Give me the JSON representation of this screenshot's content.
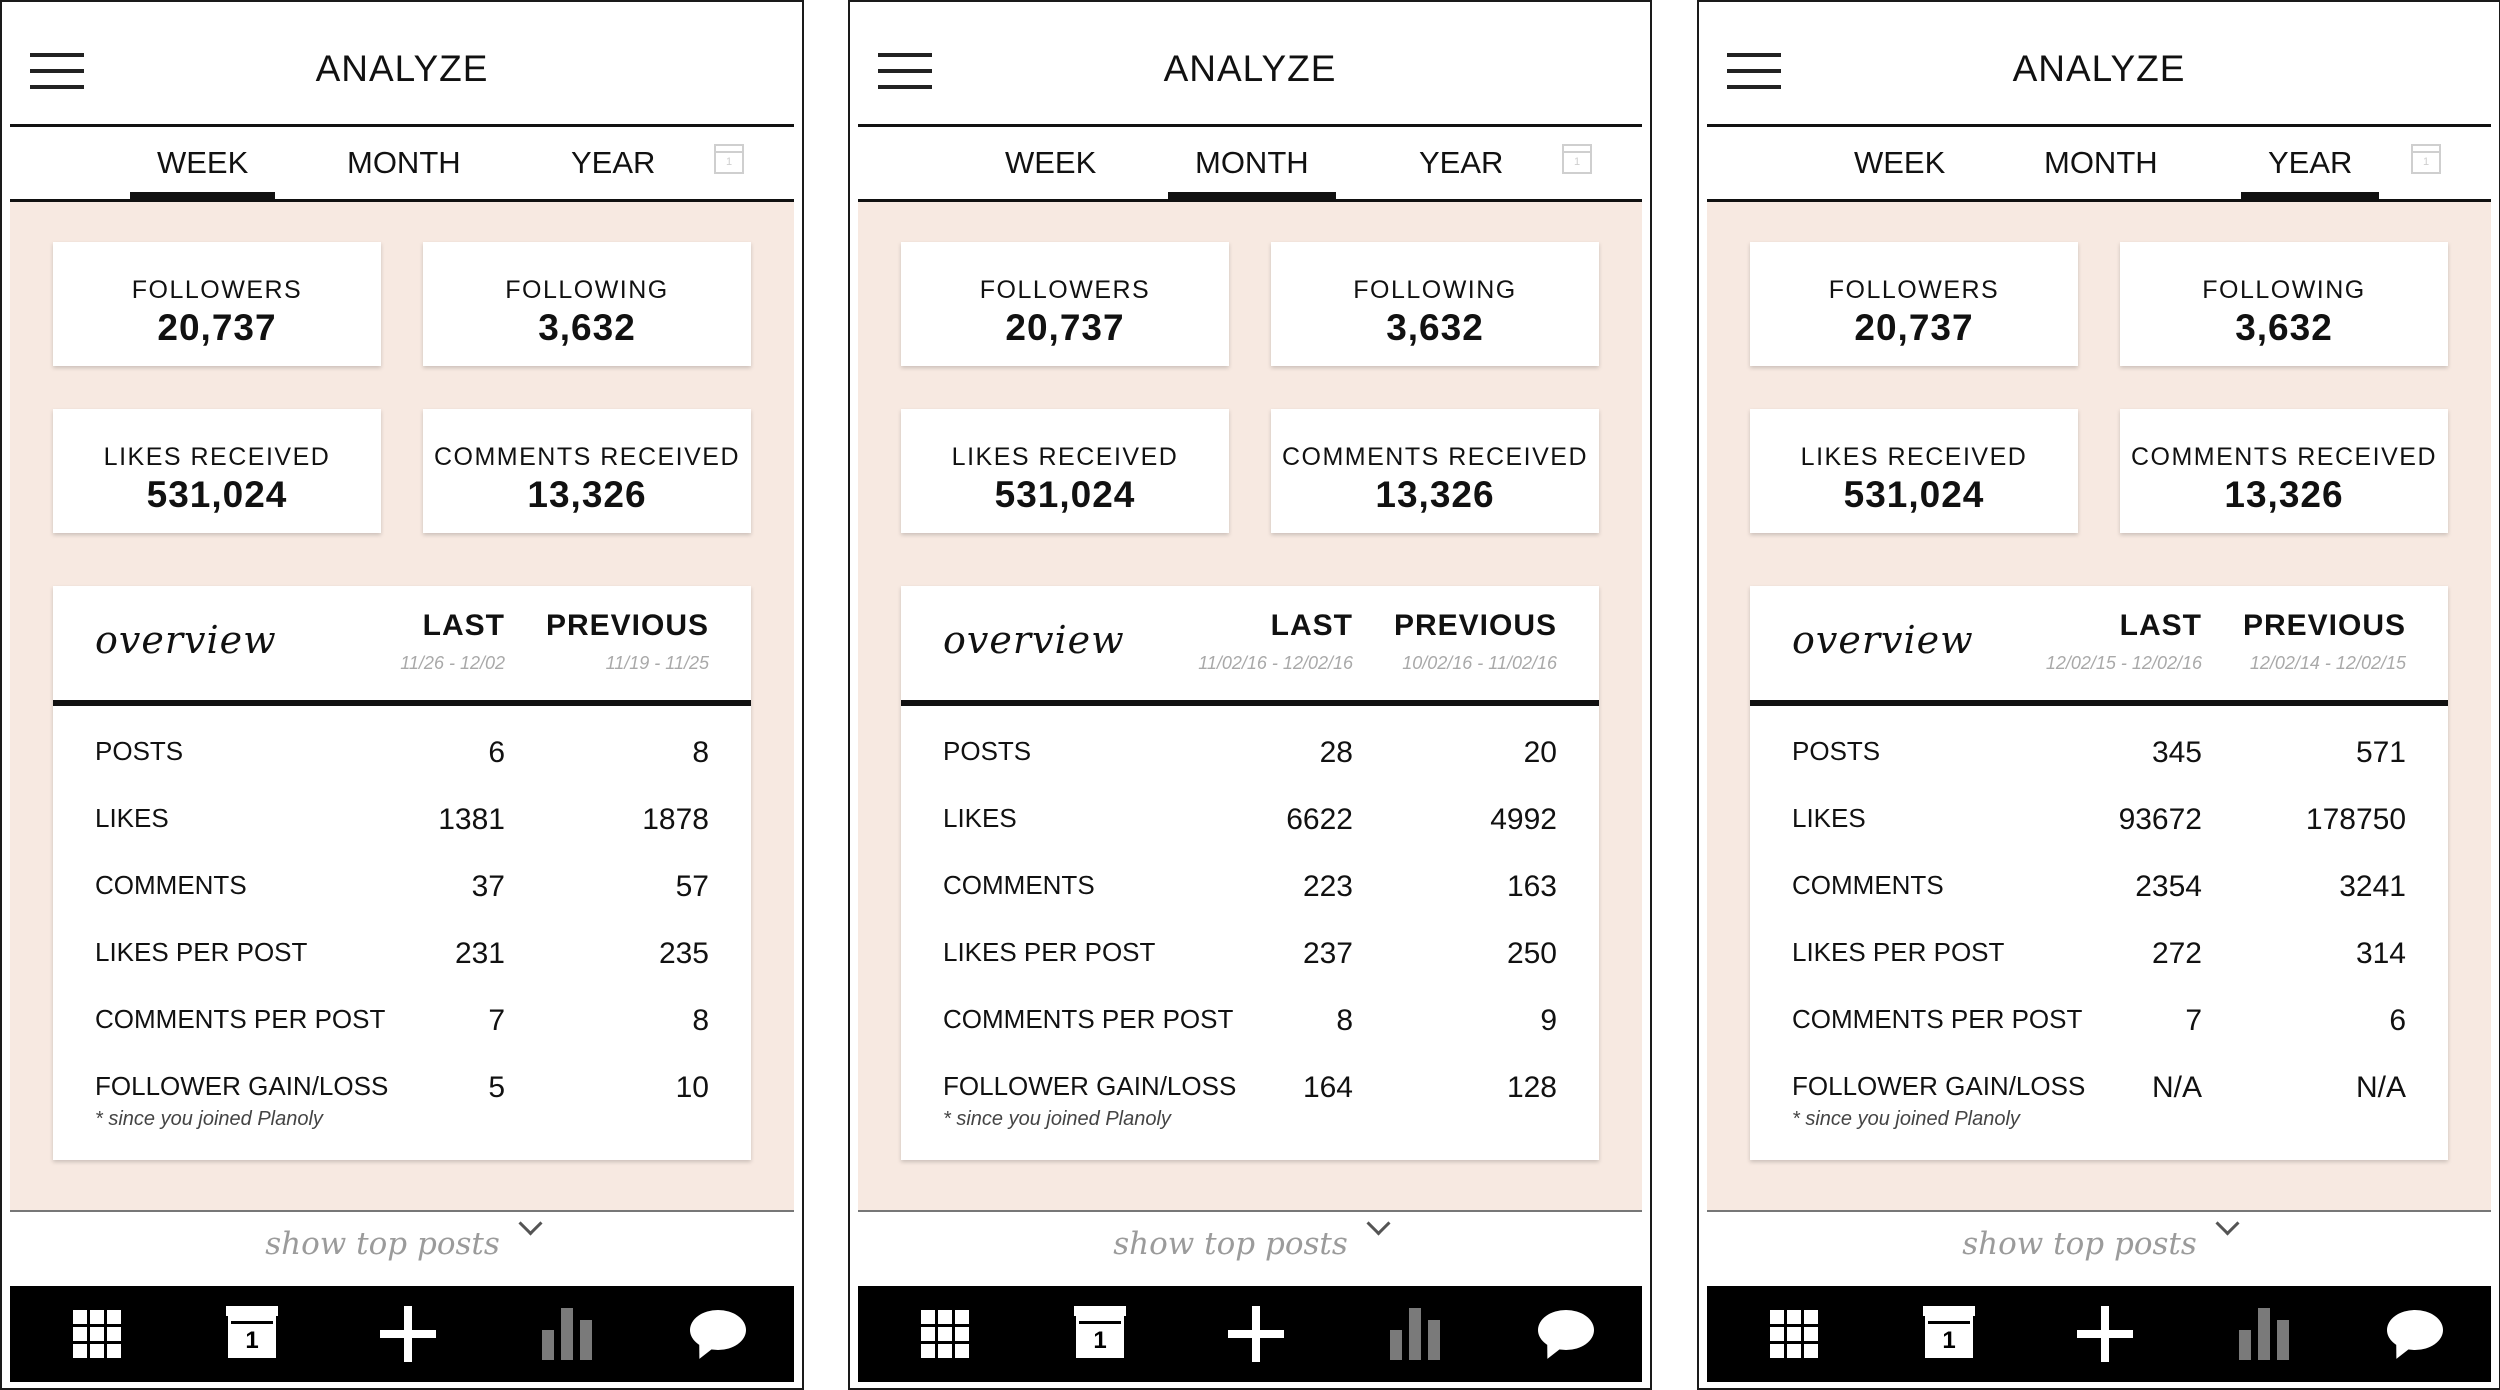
{
  "app": {
    "title": "ANALYZE",
    "tabs": [
      "WEEK",
      "MONTH",
      "YEAR"
    ],
    "stats": {
      "followers_label": "FOLLOWERS",
      "followers": "20,737",
      "following_label": "FOLLOWING",
      "following": "3,632",
      "likes_label": "LIKES RECEIVED",
      "likes": "531,024",
      "comments_label": "COMMENTS RECEIVED",
      "comments": "13,326"
    },
    "overview": {
      "title": "overview",
      "last_label": "LAST",
      "previous_label": "PREVIOUS"
    },
    "row_labels": [
      "POSTS",
      "LIKES",
      "COMMENTS",
      "LIKES PER POST",
      "COMMENTS PER POST",
      "FOLLOWER GAIN/LOSS"
    ],
    "note": "* since you joined Planoly",
    "show_top_posts": "show top posts",
    "calendar_day": "1",
    "colors": {
      "content_bg": "#f7e9e1",
      "nav_bg": "#000000",
      "inactive_text": "#9b9b9b"
    },
    "nav_icons": [
      "grid-icon",
      "calendar-icon",
      "plus-icon",
      "bar-chart-icon",
      "chat-bubble-icon"
    ]
  },
  "screens": [
    {
      "active_tab": "WEEK",
      "last_range": "11/26 - 12/02",
      "previous_range": "11/19 - 11/25",
      "rows": [
        {
          "last": "6",
          "previous": "8"
        },
        {
          "last": "1381",
          "previous": "1878"
        },
        {
          "last": "37",
          "previous": "57"
        },
        {
          "last": "231",
          "previous": "235"
        },
        {
          "last": "7",
          "previous": "8"
        },
        {
          "last": "5",
          "previous": "10"
        }
      ]
    },
    {
      "active_tab": "MONTH",
      "last_range": "11/02/16 - 12/02/16",
      "previous_range": "10/02/16 - 11/02/16",
      "rows": [
        {
          "last": "28",
          "previous": "20"
        },
        {
          "last": "6622",
          "previous": "4992"
        },
        {
          "last": "223",
          "previous": "163"
        },
        {
          "last": "237",
          "previous": "250"
        },
        {
          "last": "8",
          "previous": "9"
        },
        {
          "last": "164",
          "previous": "128"
        }
      ]
    },
    {
      "active_tab": "YEAR",
      "last_range": "12/02/15 - 12/02/16",
      "previous_range": "12/02/14 - 12/02/15",
      "rows": [
        {
          "last": "345",
          "previous": "571"
        },
        {
          "last": "93672",
          "previous": "178750"
        },
        {
          "last": "2354",
          "previous": "3241"
        },
        {
          "last": "272",
          "previous": "314"
        },
        {
          "last": "7",
          "previous": "6"
        },
        {
          "last": "N/A",
          "previous": "N/A"
        }
      ]
    }
  ]
}
